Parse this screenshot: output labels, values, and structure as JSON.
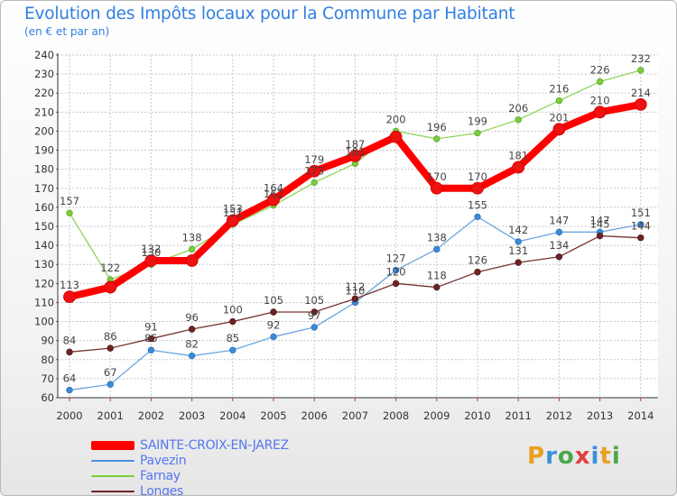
{
  "header": {
    "title": "Evolution des Impôts locaux pour la Commune par Habitant",
    "subtitle": "(en € et par an)"
  },
  "logo": {
    "text": "Proxiti",
    "letter_colors": [
      "#e8a020",
      "#3a8fd8",
      "#4aa84a",
      "#e04040",
      "#3a8fd8",
      "#e8a020",
      "#4aa84a"
    ]
  },
  "chart_data": {
    "type": "line",
    "title": "Evolution des Impôts locaux pour la Commune par Habitant",
    "subtitle": "(en € et par an)",
    "xlabel": "",
    "ylabel": "",
    "x": [
      "2000",
      "2001",
      "2002",
      "2003",
      "2004",
      "2005",
      "2006",
      "2007",
      "2008",
      "2009",
      "2010",
      "2011",
      "2012",
      "2013",
      "2014"
    ],
    "ylim": [
      60,
      240
    ],
    "yticks": [
      60,
      70,
      80,
      90,
      100,
      110,
      120,
      130,
      140,
      150,
      160,
      170,
      180,
      190,
      200,
      210,
      220,
      230,
      240
    ],
    "grid": true,
    "legend_position": "bottom-left",
    "series": [
      {
        "name": "SAINTE-CROIX-EN-JAREZ",
        "color": "#ff0000",
        "values": [
          113,
          118,
          132,
          132,
          153,
          164,
          179,
          187,
          197,
          170,
          170,
          181,
          201,
          210,
          214
        ],
        "labels": [
          "113",
          "",
          "132",
          "",
          "153",
          "164",
          "179",
          "187",
          "",
          "170",
          "170",
          "181",
          "201",
          "210",
          "214"
        ]
      },
      {
        "name": "Pavezin",
        "color": "#4a90d9",
        "values": [
          64,
          67,
          85,
          82,
          85,
          92,
          97,
          110,
          127,
          138,
          155,
          142,
          147,
          147,
          151
        ],
        "labels": [
          "64",
          "67",
          "85",
          "82",
          "85",
          "92",
          "97",
          "110",
          "127",
          "138",
          "155",
          "142",
          "147",
          "147",
          "151"
        ]
      },
      {
        "name": "Farnay",
        "color": "#7dcc3c",
        "values": [
          157,
          122,
          130,
          138,
          151,
          161,
          173,
          183,
          200,
          196,
          199,
          206,
          216,
          226,
          232
        ],
        "labels": [
          "157",
          "122",
          "130",
          "138",
          "151",
          "161",
          "173",
          "183",
          "200",
          "196",
          "199",
          "206",
          "216",
          "226",
          "232"
        ]
      },
      {
        "name": "Longes",
        "color": "#6e2424",
        "values": [
          84,
          86,
          91,
          96,
          100,
          105,
          105,
          112,
          120,
          118,
          126,
          131,
          134,
          145,
          144
        ],
        "labels": [
          "84",
          "86",
          "91",
          "96",
          "100",
          "105",
          "105",
          "112",
          "120",
          "118",
          "126",
          "131",
          "134",
          "145",
          "144"
        ]
      }
    ]
  }
}
